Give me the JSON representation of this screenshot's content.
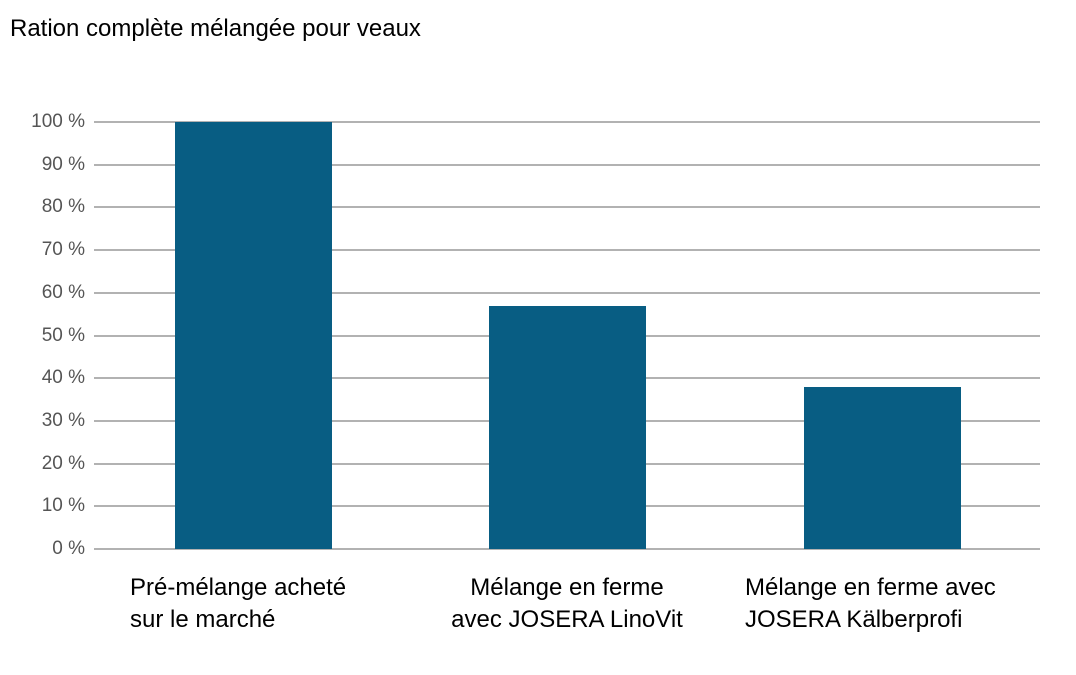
{
  "chart_data": {
    "type": "bar",
    "title": "Ration complète mélangée pour veaux",
    "categories": [
      "Pré-mélange acheté\nsur le marché",
      "Mélange en ferme\navec JOSERA LinoVit",
      "Mélange en ferme avec\nJOSERA Kälberprofi"
    ],
    "values": [
      100,
      57,
      38
    ],
    "value_unit": "%",
    "xlabel": "",
    "ylabel": "",
    "ylim": [
      0,
      100
    ],
    "ytick_step": 10,
    "ytick_labels": [
      "0 %",
      "10 %",
      "20 %",
      "30 %",
      "40 %",
      "50 %",
      "60 %",
      "70 %",
      "80 %",
      "90 %",
      "100 %"
    ],
    "grid": "horizontal",
    "legend": "none",
    "colors": {
      "bar": "#085d83",
      "gridline": "#b2b2b2",
      "tick_label": "#555555",
      "title": "#000000",
      "category_label": "#000000",
      "background": "#ffffff"
    }
  }
}
